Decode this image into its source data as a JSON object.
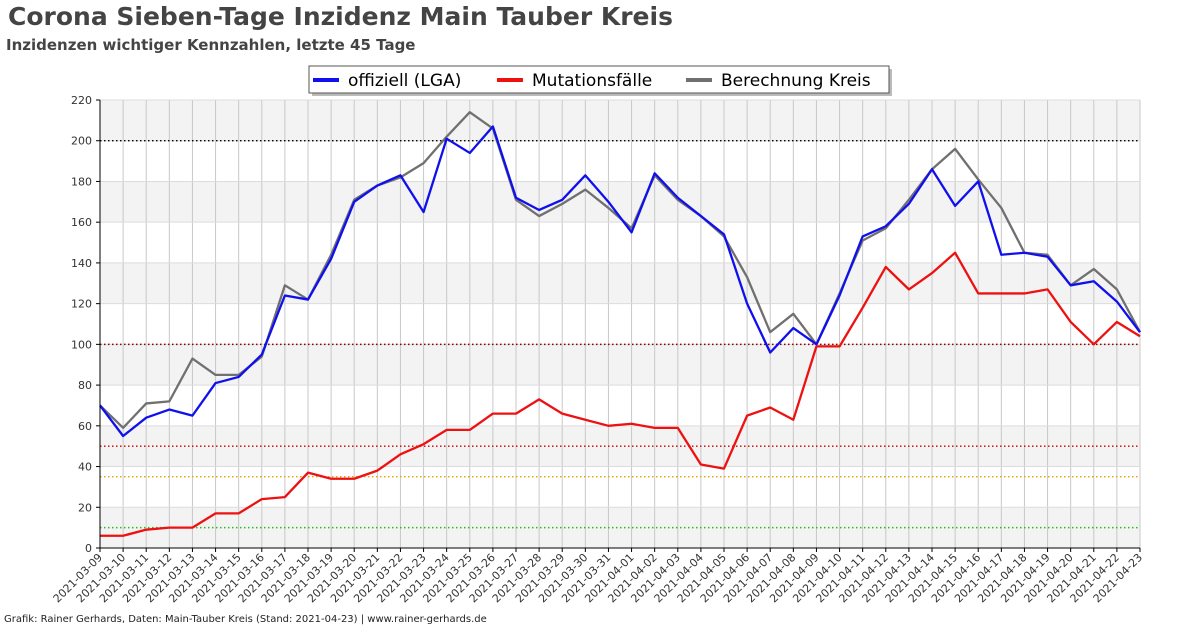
{
  "title": "Corona Sieben-Tage Inzidenz Main Tauber Kreis",
  "subtitle": "Inzidenzen wichtiger Kennzahlen, letzte 45 Tage",
  "footer": "Grafik: Rainer Gerhards, Daten: Main-Tauber Kreis (Stand: 2021-04-23) | www.rainer-gerhards.de",
  "chart_data": {
    "type": "line",
    "title": "Corona Sieben-Tage Inzidenz Main Tauber Kreis",
    "subtitle": "Inzidenzen wichtiger Kennzahlen, letzte 45 Tage",
    "xlabel": "",
    "ylabel": "",
    "ylim": [
      0,
      220
    ],
    "yticks": [
      0,
      20,
      40,
      60,
      80,
      100,
      120,
      140,
      160,
      180,
      200,
      220
    ],
    "grid": true,
    "legend_position": "top-center",
    "x": [
      "2021-03-09",
      "2021-03-10",
      "2021-03-11",
      "2021-03-12",
      "2021-03-13",
      "2021-03-14",
      "2021-03-15",
      "2021-03-16",
      "2021-03-17",
      "2021-03-18",
      "2021-03-19",
      "2021-03-20",
      "2021-03-21",
      "2021-03-22",
      "2021-03-23",
      "2021-03-24",
      "2021-03-25",
      "2021-03-26",
      "2021-03-27",
      "2021-03-28",
      "2021-03-29",
      "2021-03-30",
      "2021-03-31",
      "2021-04-01",
      "2021-04-02",
      "2021-04-03",
      "2021-04-04",
      "2021-04-05",
      "2021-04-06",
      "2021-04-07",
      "2021-04-08",
      "2021-04-09",
      "2021-04-10",
      "2021-04-11",
      "2021-04-12",
      "2021-04-13",
      "2021-04-14",
      "2021-04-15",
      "2021-04-16",
      "2021-04-17",
      "2021-04-18",
      "2021-04-19",
      "2021-04-20",
      "2021-04-21",
      "2021-04-22",
      "2021-04-23"
    ],
    "series": [
      {
        "name": "offiziell (LGA)",
        "color": "#1010ee",
        "values": [
          70,
          55,
          64,
          68,
          65,
          81,
          84,
          95,
          124,
          122,
          142,
          170,
          178,
          183,
          165,
          201,
          194,
          207,
          172,
          166,
          171,
          183,
          170,
          155,
          184,
          172,
          163,
          154,
          120,
          96,
          108,
          100,
          124,
          153,
          158,
          169,
          186,
          168,
          180,
          144,
          145,
          143,
          129,
          131,
          121,
          106
        ]
      },
      {
        "name": "Mutationsfälle",
        "color": "#ee1111",
        "values": [
          6,
          6,
          9,
          10,
          10,
          17,
          17,
          24,
          25,
          37,
          34,
          34,
          38,
          46,
          51,
          58,
          58,
          66,
          66,
          73,
          66,
          63,
          60,
          61,
          59,
          59,
          41,
          39,
          65,
          69,
          63,
          99,
          99,
          118,
          138,
          127,
          135,
          145,
          125,
          125,
          125,
          127,
          111,
          100,
          111,
          104
        ]
      },
      {
        "name": "Berechnung Kreis",
        "color": "#707070",
        "values": [
          70,
          59,
          71,
          72,
          93,
          85,
          85,
          94,
          129,
          122,
          144,
          171,
          178,
          182,
          189,
          202,
          214,
          206,
          171,
          163,
          169,
          176,
          167,
          157,
          183,
          171,
          163,
          153,
          133,
          106,
          115,
          100,
          125,
          151,
          157,
          171,
          186,
          196,
          181,
          167,
          145,
          144,
          129,
          137,
          127,
          106
        ]
      }
    ],
    "reference_lines": [
      {
        "value": 200,
        "color": "#000000"
      },
      {
        "value": 100,
        "color": "#8b0000"
      },
      {
        "value": 50,
        "color": "#cc0000"
      },
      {
        "value": 35,
        "color": "#e6a000"
      },
      {
        "value": 10,
        "color": "#22bb22"
      }
    ]
  }
}
